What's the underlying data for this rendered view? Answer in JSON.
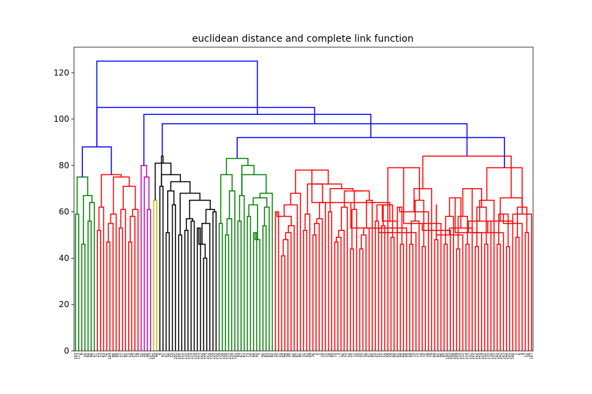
{
  "chart_data": {
    "type": "dendrogram",
    "title": "euclidean distance and complete link function",
    "xlabel": "",
    "ylabel": "",
    "ylim": [
      0,
      131
    ],
    "yticks": [
      0,
      20,
      40,
      60,
      80,
      100,
      120
    ],
    "grid": false,
    "colors": {
      "green": "#008000",
      "red": "#ff0000",
      "cyan": "#00bfbf",
      "magenta": "#bf00bf",
      "yellow": "#bfbf00",
      "black": "#000000",
      "blue": "#0000ff"
    },
    "leaf_count": 147,
    "leaves": [
      "103",
      "113",
      "8",
      "26",
      "84",
      "94",
      "47",
      "21",
      "53",
      "43",
      "76",
      "104",
      "86",
      "88",
      "17",
      "57",
      "65",
      "23",
      "29",
      "52",
      "19",
      "32",
      "48",
      "46",
      "107",
      "105",
      "98",
      "4",
      "92",
      "61",
      "35",
      "54",
      "101",
      "106",
      "111",
      "115",
      "116",
      "124",
      "118",
      "123",
      "122",
      "126",
      "127",
      "119",
      "128",
      "132",
      "139",
      "138",
      "130",
      "133",
      "134",
      "141",
      "93",
      "67",
      "63",
      "73",
      "34",
      "44",
      "80",
      "7",
      "90",
      "81",
      "83",
      "82",
      "20",
      "22",
      "24",
      "99",
      "38",
      "77",
      "85",
      "87",
      "95",
      "31",
      "42",
      "49",
      "36",
      "2",
      "5",
      "14",
      "15",
      "18",
      "40",
      "10",
      "3",
      "12",
      "25",
      "27",
      "28",
      "11",
      "30",
      "33",
      "37",
      "39",
      "41",
      "45",
      "50",
      "51",
      "55",
      "56",
      "58",
      "59",
      "60",
      "62",
      "64",
      "66",
      "68",
      "69",
      "70",
      "71",
      "72",
      "74",
      "75",
      "78",
      "79",
      "89",
      "91",
      "96",
      "97",
      "100",
      "102",
      "108",
      "109",
      "110",
      "112",
      "114",
      "117",
      "120",
      "121",
      "125",
      "129",
      "131",
      "135",
      "136",
      "137",
      "140",
      "142",
      "143",
      "144",
      "145",
      "146",
      "1",
      "6",
      "9",
      "13",
      "16",
      "147"
    ],
    "group_ranges": [
      {
        "color": "green",
        "start": 0,
        "end": 6
      },
      {
        "color": "red",
        "start": 7,
        "end": 20
      },
      {
        "color": "cyan",
        "start": 21,
        "end": 21
      },
      {
        "color": "magenta",
        "start": 22,
        "end": 24
      },
      {
        "color": "yellow",
        "start": 25,
        "end": 26
      },
      {
        "color": "black",
        "start": 27,
        "end": 45
      },
      {
        "color": "green",
        "start": 46,
        "end": 63
      },
      {
        "color": "red",
        "start": 64,
        "end": 146
      }
    ],
    "merges": [
      {
        "i": 0,
        "j": 1,
        "h": 59,
        "c": "green"
      },
      {
        "i": 2,
        "j": 3,
        "h": 46,
        "c": "green"
      },
      {
        "i": 4,
        "j": 5,
        "h": 56,
        "c": "green"
      },
      {
        "i": 149,
        "j": 6,
        "h": 64,
        "c": "green"
      },
      {
        "i": 148,
        "j": 150,
        "h": 67,
        "c": "green"
      },
      {
        "i": 147,
        "j": 151,
        "h": 75,
        "c": "green"
      },
      {
        "i": 7,
        "j": 8,
        "h": 52,
        "c": "red"
      },
      {
        "i": 153,
        "j": 9,
        "h": 62,
        "c": "red"
      },
      {
        "i": 10,
        "j": 11,
        "h": 47,
        "c": "red"
      },
      {
        "i": 155,
        "j": 12,
        "h": 55,
        "c": "red"
      },
      {
        "i": 156,
        "j": 13,
        "h": 59,
        "c": "red"
      },
      {
        "i": 14,
        "j": 15,
        "h": 53,
        "c": "red"
      },
      {
        "i": 158,
        "j": 16,
        "h": 61,
        "c": "red"
      },
      {
        "i": 17,
        "j": 18,
        "h": 47,
        "c": "red"
      },
      {
        "i": 160,
        "j": 19,
        "h": 58,
        "c": "red"
      },
      {
        "i": 161,
        "j": 20,
        "h": 61,
        "c": "red"
      },
      {
        "i": 159,
        "j": 162,
        "h": 71,
        "c": "red"
      },
      {
        "i": 157,
        "j": 163,
        "h": 75,
        "c": "red"
      },
      {
        "i": 154,
        "j": 164,
        "h": 76,
        "c": "red"
      },
      {
        "i": 152,
        "j": 165,
        "h": 88,
        "c": "blue"
      },
      {
        "i": 23,
        "j": 24,
        "h": 61,
        "c": "magenta"
      },
      {
        "i": 22,
        "j": 167,
        "h": 75,
        "c": "magenta"
      },
      {
        "i": 21,
        "j": 168,
        "h": 80,
        "c": "magenta"
      },
      {
        "i": 25,
        "j": 26,
        "h": 65,
        "c": "yellow"
      },
      {
        "i": 27,
        "j": 28,
        "h": 71,
        "c": "black"
      },
      {
        "i": 29,
        "j": 30,
        "h": 51,
        "c": "black"
      },
      {
        "i": 31,
        "j": 32,
        "h": 63,
        "c": "black"
      },
      {
        "i": 172,
        "j": 173,
        "h": 69,
        "c": "black"
      },
      {
        "i": 33,
        "j": 34,
        "h": 50,
        "c": "black"
      },
      {
        "i": 35,
        "j": 36,
        "h": 52,
        "c": "black"
      },
      {
        "i": 37,
        "j": 38,
        "h": 56,
        "c": "black"
      },
      {
        "i": 176,
        "j": 177,
        "h": 57,
        "c": "black"
      },
      {
        "i": 39,
        "j": 40,
        "h": 53,
        "c": "black"
      },
      {
        "i": 41,
        "j": 42,
        "h": 40,
        "c": "black"
      },
      {
        "i": 179,
        "j": 180,
        "h": 46,
        "c": "black"
      },
      {
        "i": 181,
        "j": 43,
        "h": 55,
        "c": "black"
      },
      {
        "i": 44,
        "j": 45,
        "h": 60,
        "c": "black"
      },
      {
        "i": 182,
        "j": 183,
        "h": 61,
        "c": "black"
      },
      {
        "i": 178,
        "j": 184,
        "h": 65,
        "c": "black"
      },
      {
        "i": 175,
        "j": 185,
        "h": 68,
        "c": "black"
      },
      {
        "i": 174,
        "j": 186,
        "h": 73,
        "c": "black"
      },
      {
        "i": 171,
        "j": 187,
        "h": 76,
        "c": "black"
      },
      {
        "i": 170,
        "j": 188,
        "h": 81,
        "c": "black"
      },
      {
        "i": 189,
        "j": 171,
        "h": 84,
        "c": "black"
      },
      {
        "i": 46,
        "j": 47,
        "h": 55,
        "c": "green"
      },
      {
        "i": 48,
        "j": 49,
        "h": 50,
        "c": "green"
      },
      {
        "i": 192,
        "j": 50,
        "h": 57,
        "c": "green"
      },
      {
        "i": 193,
        "j": 51,
        "h": 69,
        "c": "green"
      },
      {
        "i": 191,
        "j": 194,
        "h": 76,
        "c": "green"
      },
      {
        "i": 52,
        "j": 53,
        "h": 56,
        "c": "green"
      },
      {
        "i": 196,
        "j": 54,
        "h": 67,
        "c": "green"
      },
      {
        "i": 55,
        "j": 56,
        "h": 58,
        "c": "green"
      },
      {
        "i": 57,
        "j": 58,
        "h": 51,
        "c": "green"
      },
      {
        "i": 199,
        "j": 59,
        "h": 48,
        "c": "green"
      },
      {
        "i": 198,
        "j": 200,
        "h": 63,
        "c": "green"
      },
      {
        "i": 60,
        "j": 61,
        "h": 54,
        "c": "green"
      },
      {
        "i": 202,
        "j": 62,
        "h": 62,
        "c": "green"
      },
      {
        "i": 201,
        "j": 203,
        "h": 66,
        "c": "green"
      },
      {
        "i": 204,
        "j": 63,
        "h": 68,
        "c": "green"
      },
      {
        "i": 197,
        "j": 205,
        "h": 76,
        "c": "green"
      },
      {
        "i": 206,
        "j": 197,
        "h": 80,
        "c": "green"
      },
      {
        "i": 195,
        "j": 207,
        "h": 83,
        "c": "green"
      },
      {
        "i": 64,
        "j": 65,
        "h": 60,
        "c": "red"
      },
      {
        "i": 66,
        "j": 67,
        "h": 41,
        "c": "red"
      },
      {
        "i": 210,
        "j": 68,
        "h": 48,
        "c": "red"
      },
      {
        "i": 211,
        "j": 69,
        "h": 51,
        "c": "red"
      },
      {
        "i": 212,
        "j": 70,
        "h": 54,
        "c": "red"
      },
      {
        "i": 209,
        "j": 213,
        "h": 58,
        "c": "red"
      },
      {
        "i": 214,
        "j": 71,
        "h": 63,
        "c": "red"
      },
      {
        "i": 215,
        "j": 72,
        "h": 68,
        "c": "red"
      },
      {
        "i": 73,
        "j": 74,
        "h": 52,
        "c": "red"
      },
      {
        "i": 217,
        "j": 75,
        "h": 59,
        "c": "red"
      },
      {
        "i": 76,
        "j": 77,
        "h": 50,
        "c": "red"
      },
      {
        "i": 219,
        "j": 78,
        "h": 55,
        "c": "red"
      },
      {
        "i": 220,
        "j": 79,
        "h": 57,
        "c": "red"
      },
      {
        "i": 221,
        "j": 80,
        "h": 64,
        "c": "red"
      },
      {
        "i": 218,
        "j": 222,
        "h": 72,
        "c": "red"
      },
      {
        "i": 81,
        "j": 82,
        "h": 60,
        "c": "red"
      },
      {
        "i": 83,
        "j": 84,
        "h": 47,
        "c": "red"
      },
      {
        "i": 225,
        "j": 85,
        "h": 49,
        "c": "red"
      },
      {
        "i": 226,
        "j": 86,
        "h": 52,
        "c": "red"
      },
      {
        "i": 227,
        "j": 87,
        "h": 62,
        "c": "red"
      },
      {
        "i": 88,
        "j": 89,
        "h": 44,
        "c": "red"
      },
      {
        "i": 229,
        "j": 90,
        "h": 61,
        "c": "red"
      },
      {
        "i": 91,
        "j": 92,
        "h": 44,
        "c": "red"
      },
      {
        "i": 231,
        "j": 93,
        "h": 50,
        "c": "red"
      },
      {
        "i": 232,
        "j": 94,
        "h": 53,
        "c": "red"
      },
      {
        "i": 233,
        "j": 95,
        "h": 65,
        "c": "red"
      },
      {
        "i": 230,
        "j": 234,
        "h": 69,
        "c": "red"
      },
      {
        "i": 228,
        "j": 235,
        "h": 69,
        "c": "red"
      },
      {
        "i": 224,
        "j": 236,
        "h": 70,
        "c": "red"
      },
      {
        "i": 223,
        "j": 237,
        "h": 72,
        "c": "red"
      },
      {
        "i": 216,
        "j": 238,
        "h": 78,
        "c": "red"
      },
      {
        "i": 96,
        "j": 97,
        "h": 56,
        "c": "red"
      },
      {
        "i": 98,
        "j": 99,
        "h": 54,
        "c": "red"
      },
      {
        "i": 240,
        "j": 100,
        "h": 63,
        "c": "red"
      },
      {
        "i": 101,
        "j": 102,
        "h": 49,
        "c": "red"
      },
      {
        "i": 242,
        "j": 103,
        "h": 56,
        "c": "red"
      },
      {
        "i": 241,
        "j": 243,
        "h": 63,
        "c": "red"
      },
      {
        "i": 239,
        "j": 244,
        "h": 64,
        "c": "red"
      },
      {
        "i": 104,
        "j": 105,
        "h": 46,
        "c": "red"
      },
      {
        "i": 246,
        "j": 106,
        "h": 53,
        "c": "red"
      },
      {
        "i": 107,
        "j": 108,
        "h": 46,
        "c": "red"
      },
      {
        "i": 248,
        "j": 109,
        "h": 51,
        "c": "red"
      },
      {
        "i": 249,
        "j": 110,
        "h": 56,
        "c": "red"
      },
      {
        "i": 247,
        "j": 250,
        "h": 62,
        "c": "red"
      },
      {
        "i": 111,
        "j": 112,
        "h": 45,
        "c": "red"
      },
      {
        "i": 252,
        "j": 113,
        "h": 60,
        "c": "red"
      },
      {
        "i": 251,
        "j": 253,
        "h": 65,
        "c": "red"
      },
      {
        "i": 254,
        "j": 114,
        "h": 70,
        "c": "red"
      },
      {
        "i": 245,
        "j": 255,
        "h": 79,
        "c": "red"
      },
      {
        "i": 115,
        "j": 116,
        "h": 48,
        "c": "red"
      },
      {
        "i": 257,
        "j": 117,
        "h": 55,
        "c": "red"
      },
      {
        "i": 118,
        "j": 119,
        "h": 46,
        "c": "red"
      },
      {
        "i": 259,
        "j": 120,
        "h": 52,
        "c": "red"
      },
      {
        "i": 260,
        "j": 121,
        "h": 58,
        "c": "red"
      },
      {
        "i": 258,
        "j": 261,
        "h": 63,
        "c": "red"
      },
      {
        "i": 122,
        "j": 123,
        "h": 44,
        "c": "red"
      },
      {
        "i": 263,
        "j": 124,
        "h": 50,
        "c": "red"
      },
      {
        "i": 125,
        "j": 126,
        "h": 46,
        "c": "red"
      },
      {
        "i": 265,
        "j": 127,
        "h": 53,
        "c": "red"
      },
      {
        "i": 264,
        "j": 266,
        "h": 58,
        "c": "red"
      },
      {
        "i": 262,
        "j": 267,
        "h": 66,
        "c": "red"
      },
      {
        "i": 128,
        "j": 129,
        "h": 45,
        "c": "red"
      },
      {
        "i": 269,
        "j": 130,
        "h": 51,
        "c": "red"
      },
      {
        "i": 131,
        "j": 132,
        "h": 46,
        "c": "red"
      },
      {
        "i": 271,
        "j": 133,
        "h": 56,
        "c": "red"
      },
      {
        "i": 270,
        "j": 272,
        "h": 62,
        "c": "red"
      },
      {
        "i": 273,
        "j": 134,
        "h": 65,
        "c": "red"
      },
      {
        "i": 268,
        "j": 274,
        "h": 70,
        "c": "red"
      },
      {
        "i": 135,
        "j": 136,
        "h": 46,
        "c": "red"
      },
      {
        "i": 276,
        "j": 137,
        "h": 51,
        "c": "red"
      },
      {
        "i": 138,
        "j": 139,
        "h": 45,
        "c": "red"
      },
      {
        "i": 278,
        "j": 140,
        "h": 56,
        "c": "red"
      },
      {
        "i": 277,
        "j": 279,
        "h": 59,
        "c": "red"
      },
      {
        "i": 141,
        "j": 142,
        "h": 49,
        "c": "red"
      },
      {
        "i": 281,
        "j": 143,
        "h": 55,
        "c": "red"
      },
      {
        "i": 144,
        "j": 145,
        "h": 51,
        "c": "red"
      },
      {
        "i": 283,
        "j": 146,
        "h": 59,
        "c": "red"
      },
      {
        "i": 282,
        "j": 284,
        "h": 62,
        "c": "red"
      },
      {
        "i": 280,
        "j": 285,
        "h": 66,
        "c": "red"
      },
      {
        "i": 275,
        "j": 286,
        "h": 79,
        "c": "red"
      },
      {
        "i": 256,
        "j": 287,
        "h": 84,
        "c": "red"
      },
      {
        "i": 208,
        "j": 288,
        "h": 92,
        "c": "blue"
      },
      {
        "i": 190,
        "j": 289,
        "h": 98,
        "c": "blue"
      },
      {
        "i": 169,
        "j": 290,
        "h": 102,
        "c": "blue"
      },
      {
        "i": 166,
        "j": 291,
        "h": 105,
        "c": "blue"
      },
      {
        "i": 292,
        "j": 292,
        "h": 125,
        "c": "blue"
      }
    ]
  }
}
